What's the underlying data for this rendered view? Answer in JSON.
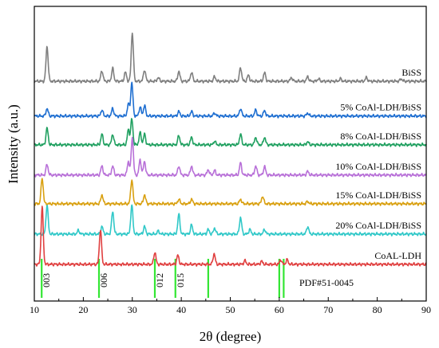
{
  "chart_data": {
    "type": "line",
    "title": "",
    "xlabel": "2θ (degree)",
    "ylabel": "Intensity (a.u.)",
    "xlim": [
      10,
      90
    ],
    "x_ticks": [
      10,
      20,
      30,
      40,
      50,
      60,
      70,
      80,
      90
    ],
    "y_ticks_shown": false,
    "grid": false,
    "legend": "labels placed at right above each curve",
    "series": [
      {
        "name": "BiSS",
        "color": "#7f7f7f",
        "baseline": 7.0,
        "peaks": [
          [
            12.6,
            1.15
          ],
          [
            23.8,
            0.35
          ],
          [
            26.0,
            0.42
          ],
          [
            28.6,
            0.3
          ],
          [
            30.0,
            1.6
          ],
          [
            32.5,
            0.38
          ],
          [
            35.3,
            0.12
          ],
          [
            39.5,
            0.33
          ],
          [
            42.1,
            0.3
          ],
          [
            46.8,
            0.15
          ],
          [
            52.1,
            0.45
          ],
          [
            53.7,
            0.2
          ],
          [
            57.0,
            0.28
          ],
          [
            62.5,
            0.12
          ],
          [
            65.8,
            0.15
          ],
          [
            68.0,
            0.08
          ],
          [
            72.5,
            0.08
          ],
          [
            77.8,
            0.12
          ],
          [
            84.9,
            0.08
          ]
        ]
      },
      {
        "name": "5% CoAl-LDH/BiSS",
        "color": "#1f6fd1",
        "baseline": 5.85,
        "peaks": [
          [
            12.6,
            0.25
          ],
          [
            23.8,
            0.2
          ],
          [
            26.0,
            0.25
          ],
          [
            29.2,
            0.4
          ],
          [
            29.9,
            1.1
          ],
          [
            31.6,
            0.3
          ],
          [
            32.5,
            0.35
          ],
          [
            39.5,
            0.15
          ],
          [
            42.1,
            0.15
          ],
          [
            46.8,
            0.1
          ],
          [
            52.1,
            0.25
          ],
          [
            55.2,
            0.2
          ],
          [
            57.0,
            0.18
          ],
          [
            65.8,
            0.1
          ]
        ]
      },
      {
        "name": "8% CoAl-LDH/BiSS",
        "color": "#20a060",
        "baseline": 4.9,
        "peaks": [
          [
            12.6,
            0.55
          ],
          [
            23.8,
            0.35
          ],
          [
            26.0,
            0.35
          ],
          [
            29.2,
            0.5
          ],
          [
            29.9,
            0.85
          ],
          [
            31.6,
            0.4
          ],
          [
            32.5,
            0.35
          ],
          [
            39.5,
            0.3
          ],
          [
            42.1,
            0.25
          ],
          [
            46.8,
            0.12
          ],
          [
            52.1,
            0.35
          ],
          [
            55.2,
            0.25
          ],
          [
            57.0,
            0.25
          ],
          [
            65.8,
            0.1
          ]
        ]
      },
      {
        "name": "10% CoAl-LDH/BiSS",
        "color": "#b870d8",
        "baseline": 3.9,
        "peaks": [
          [
            12.6,
            0.35
          ],
          [
            23.8,
            0.3
          ],
          [
            26.0,
            0.3
          ],
          [
            29.2,
            0.45
          ],
          [
            30.0,
            1.25
          ],
          [
            31.6,
            0.5
          ],
          [
            32.5,
            0.45
          ],
          [
            39.5,
            0.3
          ],
          [
            42.1,
            0.3
          ],
          [
            45.5,
            0.18
          ],
          [
            46.8,
            0.15
          ],
          [
            52.1,
            0.4
          ],
          [
            55.2,
            0.3
          ],
          [
            57.0,
            0.28
          ],
          [
            65.8,
            0.12
          ]
        ]
      },
      {
        "name": "15% CoAl-LDH/BiSS",
        "color": "#d9a010",
        "baseline": 2.95,
        "peaks": [
          [
            11.6,
            0.85
          ],
          [
            23.8,
            0.3
          ],
          [
            29.9,
            0.8
          ],
          [
            32.5,
            0.3
          ],
          [
            39.5,
            0.15
          ],
          [
            42.1,
            0.15
          ],
          [
            52.1,
            0.15
          ],
          [
            56.6,
            0.25
          ],
          [
            65.8,
            0.08
          ]
        ]
      },
      {
        "name": "20% CoAl-LDH/BiSS",
        "color": "#30c8c8",
        "baseline": 1.95,
        "peaks": [
          [
            12.6,
            0.95
          ],
          [
            19.0,
            0.12
          ],
          [
            23.8,
            0.25
          ],
          [
            26.0,
            0.75
          ],
          [
            29.9,
            0.95
          ],
          [
            32.5,
            0.25
          ],
          [
            35.3,
            0.1
          ],
          [
            39.5,
            0.65
          ],
          [
            42.1,
            0.3
          ],
          [
            45.5,
            0.15
          ],
          [
            46.8,
            0.2
          ],
          [
            52.1,
            0.55
          ],
          [
            54.0,
            0.15
          ],
          [
            57.0,
            0.15
          ],
          [
            65.8,
            0.25
          ]
        ]
      },
      {
        "name": "CoAL-LDH",
        "color": "#e04040",
        "baseline": 0.95,
        "peaks": [
          [
            11.6,
            1.9
          ],
          [
            23.5,
            1.15
          ],
          [
            34.6,
            0.4
          ],
          [
            39.3,
            0.3
          ],
          [
            46.7,
            0.35
          ],
          [
            53.0,
            0.12
          ],
          [
            56.4,
            0.1
          ],
          [
            60.3,
            0.15
          ],
          [
            61.6,
            0.15
          ]
        ]
      }
    ],
    "reference": {
      "name": "PDF#51-0045",
      "color": "#33e633",
      "lines": [
        11.5,
        23.2,
        34.6,
        38.8,
        45.5,
        60.0,
        60.9
      ],
      "hkl_labels": [
        {
          "x": 11.5,
          "text": "003"
        },
        {
          "x": 23.2,
          "text": "006"
        },
        {
          "x": 34.6,
          "text": "012"
        },
        {
          "x": 38.8,
          "text": "015"
        }
      ]
    }
  }
}
